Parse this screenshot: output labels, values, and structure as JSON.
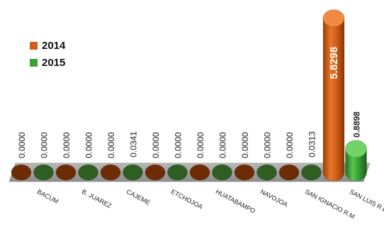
{
  "chart_data": {
    "type": "bar",
    "style": "3d-cylinder",
    "categories": [
      "BACUM",
      "B. JUAREZ",
      "CAJEME",
      "ETCHOJOA",
      "HUATABAMPO",
      "NAVOJOA",
      "SAN IGNACIO R.M",
      "SAN LUIS R.C."
    ],
    "series": [
      {
        "name": "2014",
        "color": "#d2601a",
        "values": [
          0.0,
          0.0,
          0.0,
          0.0,
          0.0,
          0.0,
          0.0,
          5.8298
        ],
        "labels": [
          "0.0000",
          "0.0000",
          "0.0000",
          "0.0000",
          "0.0000",
          "0.0000",
          "0.0000",
          "5.8298"
        ]
      },
      {
        "name": "2015",
        "color": "#3aa535",
        "values": [
          0.0,
          0.0,
          0.0341,
          0.0,
          0.0,
          0.0,
          0.0313,
          0.8898
        ],
        "labels": [
          "0.0000",
          "0.0000",
          "0.0341",
          "0.0000",
          "0.0000",
          "0.0000",
          "0.0313",
          "0.8898"
        ]
      }
    ],
    "legend_position": "top-left",
    "grid": false,
    "ylim": [
      0,
      6.2
    ]
  }
}
